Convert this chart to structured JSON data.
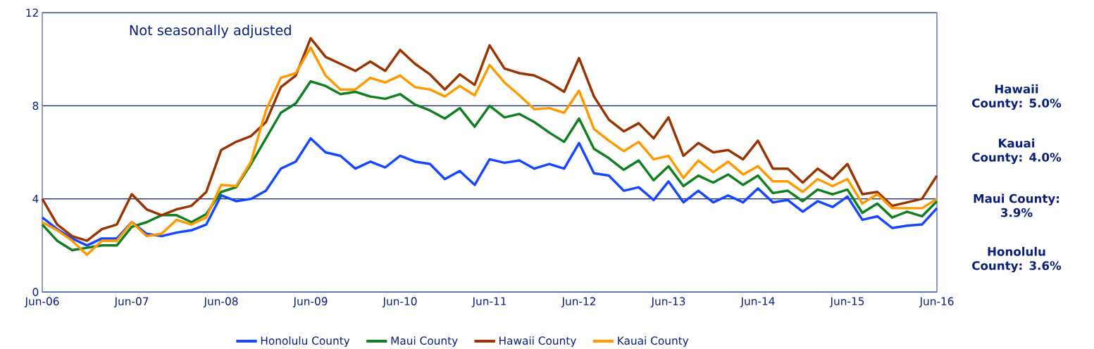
{
  "chart_data": {
    "type": "line",
    "subtitle": "Not seasonally adjusted",
    "x": [
      "2006-06",
      "2006-08",
      "2006-10",
      "2006-12",
      "2007-02",
      "2007-04",
      "2007-06",
      "2007-08",
      "2007-10",
      "2007-12",
      "2008-02",
      "2008-04",
      "2008-06",
      "2008-08",
      "2008-10",
      "2008-12",
      "2009-02",
      "2009-04",
      "2009-06",
      "2009-08",
      "2009-10",
      "2009-12",
      "2010-02",
      "2010-04",
      "2010-06",
      "2010-08",
      "2010-10",
      "2010-12",
      "2011-02",
      "2011-04",
      "2011-06",
      "2011-08",
      "2011-10",
      "2011-12",
      "2012-02",
      "2012-04",
      "2012-06",
      "2012-08",
      "2012-10",
      "2012-12",
      "2013-02",
      "2013-04",
      "2013-06",
      "2013-08",
      "2013-10",
      "2013-12",
      "2014-02",
      "2014-04",
      "2014-06",
      "2014-08",
      "2014-10",
      "2014-12",
      "2015-02",
      "2015-04",
      "2015-06",
      "2015-08",
      "2015-10",
      "2015-12",
      "2016-02",
      "2016-04",
      "2016-06"
    ],
    "series": [
      {
        "name": "Honolulu County",
        "color": "#1447ff",
        "values": [
          3.2,
          2.7,
          2.3,
          2.0,
          2.3,
          2.3,
          3.0,
          2.5,
          2.4,
          2.55,
          2.65,
          2.9,
          4.15,
          3.9,
          4.0,
          4.35,
          5.3,
          5.6,
          6.6,
          6.0,
          5.85,
          5.3,
          5.6,
          5.35,
          5.85,
          5.6,
          5.5,
          4.85,
          5.2,
          4.6,
          5.7,
          5.55,
          5.65,
          5.3,
          5.5,
          5.3,
          6.4,
          5.1,
          5.0,
          4.35,
          4.5,
          3.95,
          4.75,
          3.85,
          4.35,
          3.85,
          4.15,
          3.85,
          4.45,
          3.85,
          3.95,
          3.45,
          3.9,
          3.65,
          4.1,
          3.1,
          3.25,
          2.75,
          2.85,
          2.9,
          3.6
        ]
      },
      {
        "name": "Maui County",
        "color": "#0f7f1f",
        "values": [
          2.9,
          2.2,
          1.8,
          1.9,
          2.0,
          2.0,
          2.8,
          3.0,
          3.3,
          3.3,
          3.0,
          3.35,
          4.3,
          4.5,
          5.5,
          6.6,
          7.7,
          8.1,
          9.05,
          8.85,
          8.5,
          8.6,
          8.4,
          8.3,
          8.5,
          8.05,
          7.8,
          7.45,
          7.9,
          7.1,
          8.0,
          7.5,
          7.65,
          7.3,
          6.85,
          6.45,
          7.45,
          6.15,
          5.75,
          5.25,
          5.65,
          4.8,
          5.4,
          4.55,
          5.0,
          4.7,
          5.05,
          4.6,
          5.0,
          4.25,
          4.35,
          3.9,
          4.4,
          4.2,
          4.4,
          3.4,
          3.8,
          3.2,
          3.45,
          3.25,
          3.9
        ]
      },
      {
        "name": "Hawaii County",
        "color": "#993300",
        "values": [
          4.0,
          2.9,
          2.4,
          2.2,
          2.7,
          2.9,
          4.2,
          3.55,
          3.3,
          3.55,
          3.7,
          4.3,
          6.1,
          6.45,
          6.7,
          7.3,
          8.8,
          9.3,
          10.9,
          10.1,
          9.8,
          9.5,
          9.9,
          9.5,
          10.4,
          9.8,
          9.35,
          8.7,
          9.35,
          8.9,
          10.6,
          9.6,
          9.4,
          9.3,
          9.0,
          8.6,
          10.05,
          8.4,
          7.4,
          6.9,
          7.25,
          6.6,
          7.5,
          5.85,
          6.4,
          6.0,
          6.1,
          5.7,
          6.5,
          5.3,
          5.3,
          4.7,
          5.3,
          4.85,
          5.5,
          4.2,
          4.3,
          3.7,
          3.85,
          4.0,
          5.0
        ]
      },
      {
        "name": "Kauai County",
        "color": "#ff9900",
        "values": [
          3.0,
          2.65,
          2.2,
          1.6,
          2.2,
          2.2,
          3.0,
          2.4,
          2.5,
          3.1,
          2.9,
          3.2,
          4.6,
          4.55,
          5.6,
          7.8,
          9.2,
          9.4,
          10.5,
          9.3,
          8.7,
          8.7,
          9.2,
          9.0,
          9.3,
          8.8,
          8.7,
          8.4,
          8.85,
          8.45,
          9.75,
          9.0,
          8.45,
          7.85,
          7.9,
          7.7,
          8.65,
          7.0,
          6.5,
          6.05,
          6.45,
          5.7,
          5.85,
          4.9,
          5.65,
          5.15,
          5.6,
          5.05,
          5.4,
          4.75,
          4.75,
          4.3,
          4.85,
          4.55,
          4.85,
          3.8,
          4.2,
          3.6,
          3.6,
          3.6,
          4.0
        ]
      }
    ],
    "xlim": [
      "2006-06",
      "2016-06"
    ],
    "xticks": [
      {
        "value": "2006-06",
        "label": "Jun-06"
      },
      {
        "value": "2007-06",
        "label": "Jun-07"
      },
      {
        "value": "2008-06",
        "label": "Jun-08"
      },
      {
        "value": "2009-06",
        "label": "Jun-09"
      },
      {
        "value": "2010-06",
        "label": "Jun-10"
      },
      {
        "value": "2011-06",
        "label": "Jun-11"
      },
      {
        "value": "2012-06",
        "label": "Jun-12"
      },
      {
        "value": "2013-06",
        "label": "Jun-13"
      },
      {
        "value": "2014-06",
        "label": "Jun-14"
      },
      {
        "value": "2015-06",
        "label": "Jun-15"
      },
      {
        "value": "2016-06",
        "label": "Jun-16"
      }
    ],
    "ylim": [
      0,
      12
    ],
    "yticks": [
      0,
      4,
      8,
      12
    ],
    "grid": "y",
    "legend": "bottom",
    "marker": "none",
    "line_style": "solid",
    "annotations": [
      "Hawaii County: 5.0%",
      "Kauai County: 4.0%",
      "Maui County: 3.9%",
      "Honolulu County: 3.6%"
    ]
  }
}
